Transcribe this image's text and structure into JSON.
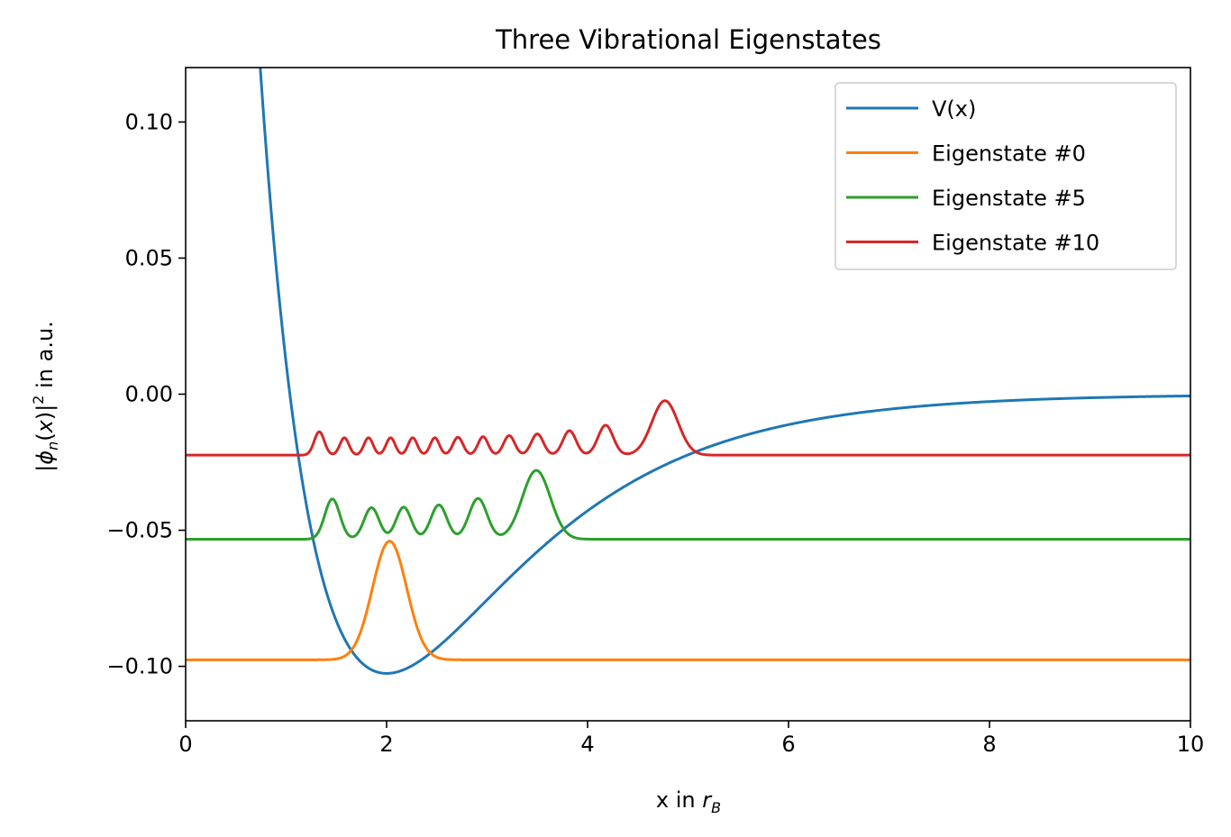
{
  "chart_data": {
    "type": "line",
    "title": "Three Vibrational Eigenstates",
    "xlabel": {
      "main": "x in ",
      "var": "r",
      "sub": "B"
    },
    "ylabel": {
      "pre": "|",
      "phi": "ϕ",
      "sub": "n",
      "mid": "(",
      "x": "x",
      "post": ")|",
      "sup": "2",
      "suffix": " in a.u."
    },
    "xlim": [
      0,
      10
    ],
    "ylim": [
      -0.12,
      0.12
    ],
    "xticks": [
      0,
      2,
      4,
      6,
      8,
      10
    ],
    "xtick_labels": [
      "0",
      "2",
      "4",
      "6",
      "8",
      "10"
    ],
    "yticks": [
      -0.1,
      -0.05,
      0.0,
      0.05,
      0.1
    ],
    "ytick_labels": [
      "−0.10",
      "−0.05",
      "0.00",
      "0.05",
      "0.10"
    ],
    "grid": false,
    "legend_position": "top-right",
    "series": [
      {
        "name": "V(x)",
        "color": "#1f77b4",
        "model": "morse",
        "params": {
          "depth": 0.1026,
          "a": 0.72,
          "x0": 2.0
        }
      },
      {
        "name": "Eigenstate #0",
        "color": "#ff7f0e",
        "model": "eigenstate",
        "params": {
          "baseline": -0.0976,
          "lobes": [
            {
              "x": 2.03,
              "height": 0.0436,
              "width": 0.17
            }
          ]
        }
      },
      {
        "name": "Eigenstate #5",
        "color": "#2ca02c",
        "model": "eigenstate",
        "params": {
          "baseline": -0.0533,
          "lobes": [
            {
              "x": 1.46,
              "height": 0.0148,
              "width": 0.075
            },
            {
              "x": 1.85,
              "height": 0.0116,
              "width": 0.075
            },
            {
              "x": 2.17,
              "height": 0.0118,
              "width": 0.075
            },
            {
              "x": 2.52,
              "height": 0.0126,
              "width": 0.08
            },
            {
              "x": 2.91,
              "height": 0.015,
              "width": 0.09
            },
            {
              "x": 3.49,
              "height": 0.0253,
              "width": 0.14
            }
          ]
        }
      },
      {
        "name": "Eigenstate #10",
        "color": "#d62728",
        "model": "eigenstate",
        "params": {
          "baseline": -0.0224,
          "lobes": [
            {
              "x": 1.33,
              "height": 0.0086,
              "width": 0.05
            },
            {
              "x": 1.58,
              "height": 0.0064,
              "width": 0.045
            },
            {
              "x": 1.82,
              "height": 0.0064,
              "width": 0.045
            },
            {
              "x": 2.04,
              "height": 0.0064,
              "width": 0.045
            },
            {
              "x": 2.26,
              "height": 0.0064,
              "width": 0.045
            },
            {
              "x": 2.48,
              "height": 0.0064,
              "width": 0.045
            },
            {
              "x": 2.71,
              "height": 0.0066,
              "width": 0.05
            },
            {
              "x": 2.96,
              "height": 0.0068,
              "width": 0.05
            },
            {
              "x": 3.22,
              "height": 0.0072,
              "width": 0.055
            },
            {
              "x": 3.5,
              "height": 0.0078,
              "width": 0.06
            },
            {
              "x": 3.82,
              "height": 0.009,
              "width": 0.065
            },
            {
              "x": 4.18,
              "height": 0.011,
              "width": 0.075
            },
            {
              "x": 4.77,
              "height": 0.02,
              "width": 0.13
            }
          ]
        }
      }
    ]
  }
}
